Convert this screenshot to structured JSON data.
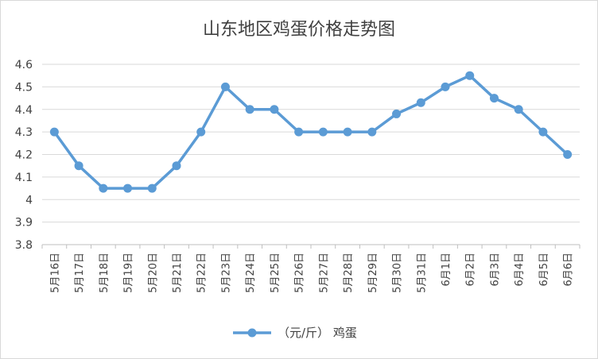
{
  "chart_data": {
    "type": "line",
    "title": "山东地区鸡蛋价格走势图",
    "xlabel": "",
    "ylabel": "",
    "ylim": [
      3.8,
      4.6
    ],
    "yticks": [
      "4.6",
      "4.5",
      "4.4",
      "4.3",
      "4.2",
      "4.1",
      "4",
      "3.9",
      "3.8"
    ],
    "ytick_values": [
      4.6,
      4.5,
      4.4,
      4.3,
      4.2,
      4.1,
      4.0,
      3.9,
      3.8
    ],
    "grid": true,
    "legend_position": "bottom",
    "categories": [
      "5月16日",
      "5月17日",
      "5月18日",
      "5月19日",
      "5月20日",
      "5月21日",
      "5月22日",
      "5月23日",
      "5月24日",
      "5月25日",
      "5月26日",
      "5月27日",
      "5月28日",
      "5月29日",
      "5月30日",
      "5月31日",
      "6月1日",
      "6月2日",
      "6月3日",
      "6月4日",
      "6月5日",
      "6月6日"
    ],
    "series": [
      {
        "name": "（元/斤） 鸡蛋",
        "color": "#5b9bd5",
        "values": [
          4.3,
          4.15,
          4.05,
          4.05,
          4.05,
          4.15,
          4.3,
          4.5,
          4.4,
          4.4,
          4.3,
          4.3,
          4.3,
          4.3,
          4.38,
          4.43,
          4.5,
          4.55,
          4.45,
          4.4,
          4.3,
          4.2
        ]
      }
    ]
  }
}
